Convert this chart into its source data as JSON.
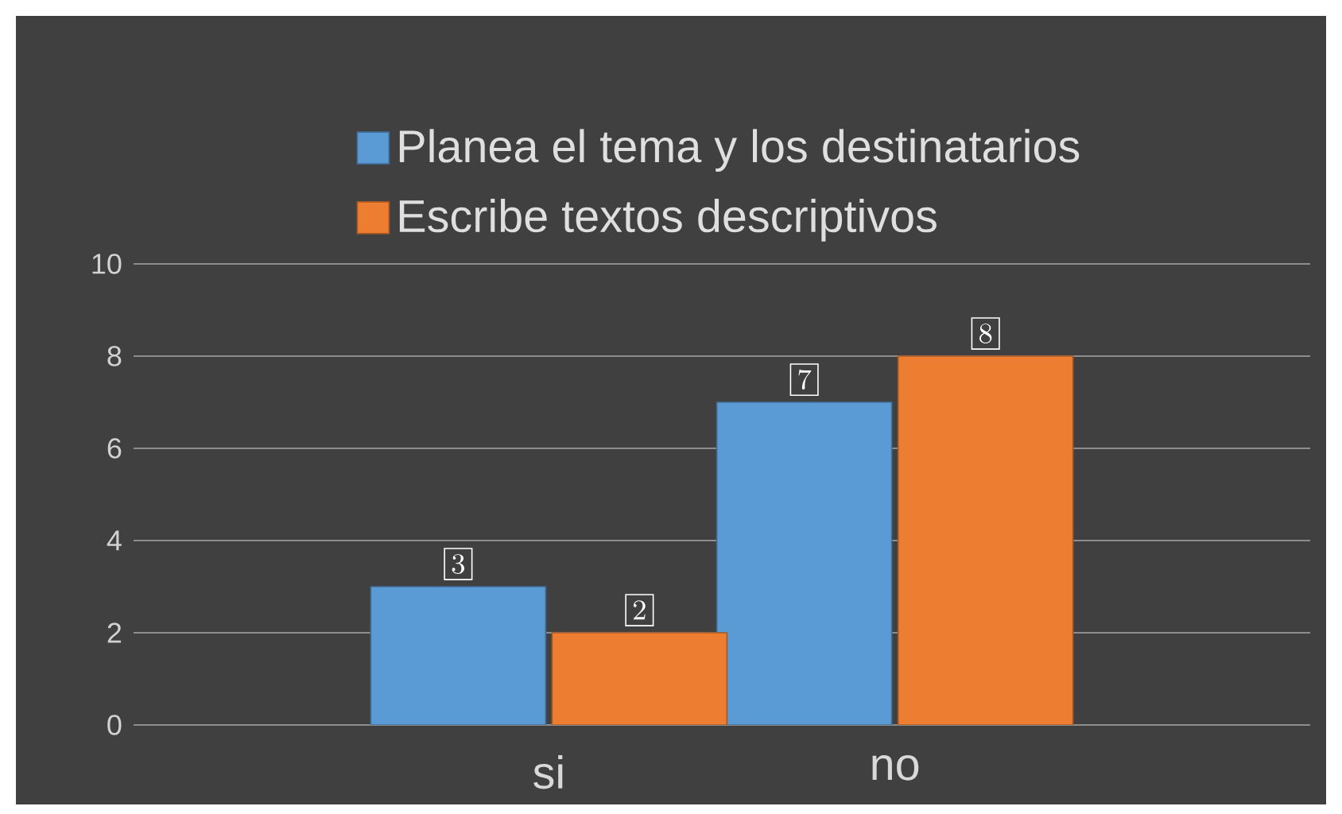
{
  "chart_data": {
    "type": "bar",
    "categories": [
      "si",
      "no"
    ],
    "series": [
      {
        "name": "Planea el tema y los destinatarios",
        "color": "#5b9bd5",
        "values": [
          3,
          7
        ]
      },
      {
        "name": "Escribe textos descriptivos",
        "color": "#ed7d31",
        "values": [
          2,
          8
        ]
      }
    ],
    "ylim": [
      0,
      10
    ],
    "yticks": [
      0,
      2,
      4,
      6,
      8,
      10
    ],
    "grid": "y",
    "legend": "top",
    "data_labels": true
  }
}
